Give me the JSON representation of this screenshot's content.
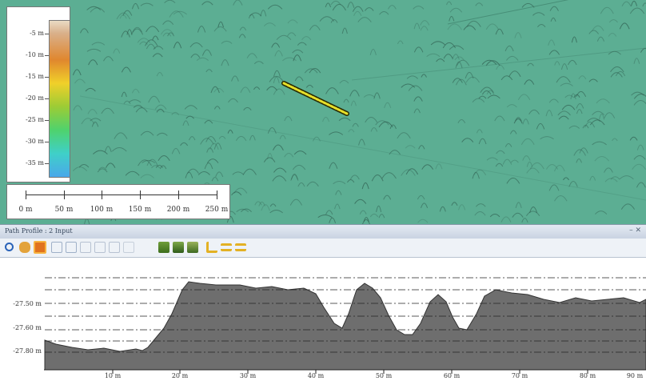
{
  "legend": {
    "ticks": [
      "-5 m",
      "-10 m",
      "-15 m",
      "-20 m",
      "-25 m",
      "-30 m",
      "-35 m"
    ]
  },
  "scale": {
    "labels": [
      "0 m",
      "50 m",
      "100 m",
      "150 m",
      "200 m",
      "250 m"
    ]
  },
  "profile_panel": {
    "title": "Path Profile : 2 Input",
    "close": "– ✕",
    "y_labels": [
      "-27.50 m",
      "-27.60 m",
      "-27.80 m"
    ],
    "x_labels": [
      "10 m",
      "20 m",
      "30 m",
      "40 m",
      "50 m",
      "60 m",
      "70 m",
      "80 m",
      "90 m"
    ]
  },
  "toolbar": {
    "icons": [
      "zoom-icon",
      "pan-hand-icon",
      "pick-icon",
      "grid-icon",
      "copy-icon",
      "hierarchy-icon",
      "network-icon",
      "measure-icon",
      "cursor-icon",
      "chart-icon",
      "chart-alt-icon",
      "export-icon",
      "align-left-icon",
      "distribute-icon",
      "align-right-icon"
    ]
  },
  "colors": {
    "map": "#5cae93",
    "profile_fill": "#6e6e6e",
    "path": "#e7e02a"
  }
}
